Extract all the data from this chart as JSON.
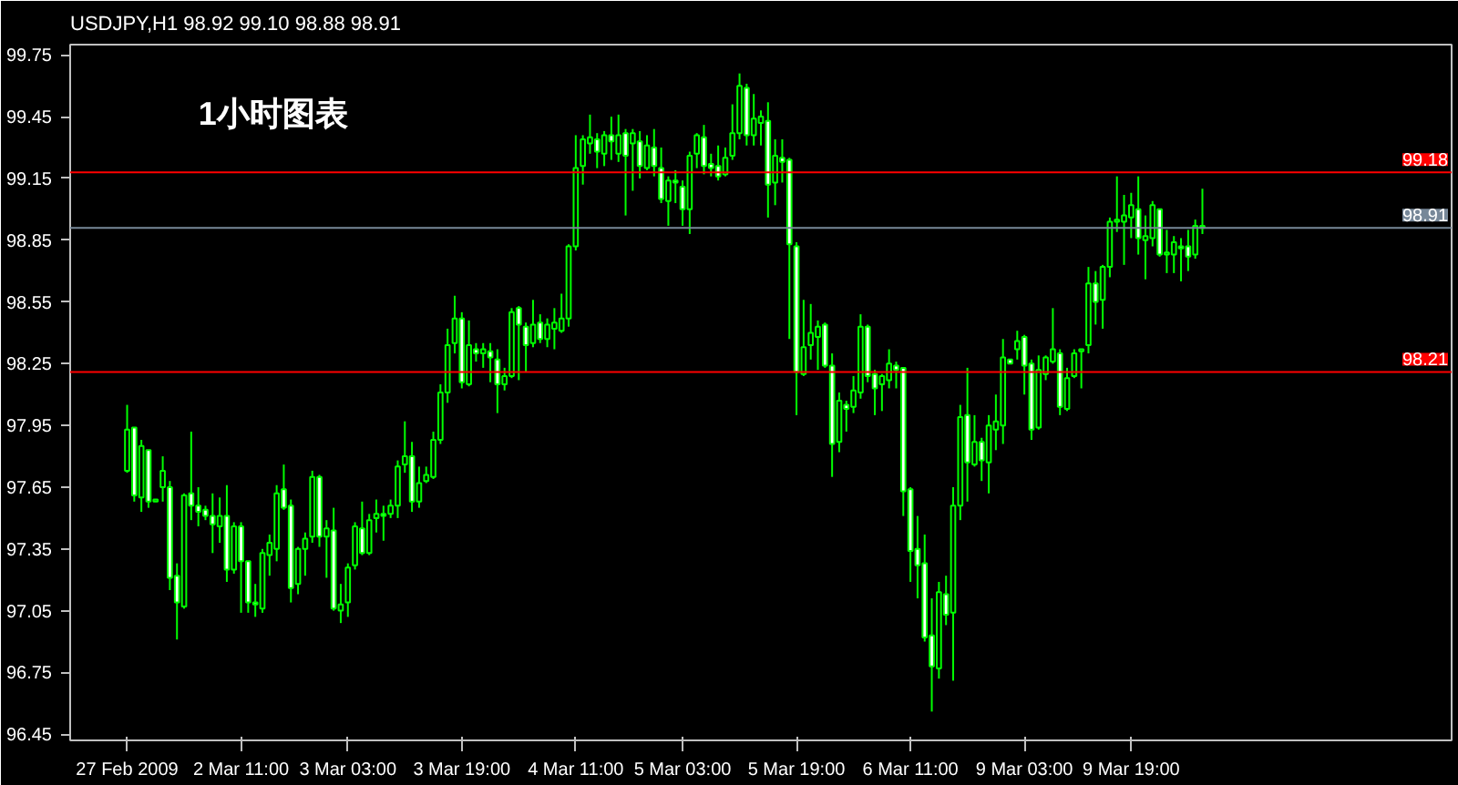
{
  "chart_data": {
    "type": "candlestick",
    "title": "USDJPY,H1  98.92 99.10 98.88 98.91",
    "annotations": [
      "1小时图表"
    ],
    "color": "#00ff00",
    "categories": [
      "27 Feb 2009",
      null,
      null,
      null,
      null,
      null,
      null,
      null,
      null,
      null,
      null,
      null,
      null,
      null,
      null,
      null,
      "2 Mar 11:00",
      null,
      null,
      null,
      null,
      null,
      null,
      null,
      null,
      null,
      null,
      null,
      null,
      null,
      null,
      "3 Mar 03:00",
      null,
      null,
      null,
      null,
      null,
      null,
      null,
      null,
      null,
      null,
      null,
      null,
      null,
      null,
      null,
      "3 Mar 19:00",
      null,
      null,
      null,
      null,
      null,
      null,
      null,
      null,
      null,
      null,
      null,
      null,
      null,
      null,
      null,
      "4 Mar 11:00",
      null,
      null,
      null,
      null,
      null,
      null,
      null,
      null,
      null,
      null,
      null,
      null,
      null,
      null,
      "5 Mar 03:00",
      null,
      null,
      null,
      null,
      null,
      null,
      null,
      null,
      null,
      null,
      null,
      null,
      null,
      null,
      null,
      "5 Mar 19:00",
      null,
      null,
      null,
      null,
      null,
      null,
      null,
      null,
      null,
      null,
      null,
      null,
      null,
      null,
      null,
      "6 Mar 11:00",
      null,
      null,
      null,
      null,
      null,
      null,
      null,
      null,
      null,
      null,
      null,
      null,
      null,
      null,
      null,
      "9 Mar 03:00",
      null,
      null,
      null,
      null,
      null,
      null,
      null,
      null,
      null,
      null,
      null,
      null,
      null,
      null,
      "9 Mar 19:00",
      null,
      null,
      null,
      null,
      null,
      null,
      null,
      null,
      null,
      null
    ],
    "ohlc": [
      [
        97.73,
        98.05,
        97.72,
        97.93
      ],
      [
        97.94,
        97.94,
        97.58,
        97.61
      ],
      [
        97.6,
        97.88,
        97.53,
        97.85
      ],
      [
        97.83,
        97.83,
        97.55,
        97.58
      ],
      [
        97.58,
        97.59,
        97.58,
        97.59
      ],
      [
        97.65,
        97.8,
        97.58,
        97.73
      ],
      [
        97.65,
        97.68,
        97.15,
        97.21
      ],
      [
        97.22,
        97.28,
        96.91,
        97.09
      ],
      [
        97.07,
        97.62,
        97.06,
        97.61
      ],
      [
        97.62,
        97.92,
        97.49,
        97.56
      ],
      [
        97.56,
        97.65,
        97.46,
        97.53
      ],
      [
        97.54,
        97.56,
        97.49,
        97.51
      ],
      [
        97.51,
        97.62,
        97.33,
        97.47
      ],
      [
        97.46,
        97.6,
        97.38,
        97.51
      ],
      [
        97.51,
        97.66,
        97.19,
        97.25
      ],
      [
        97.25,
        97.48,
        97.23,
        97.46
      ],
      [
        97.46,
        97.48,
        97.04,
        97.29
      ],
      [
        97.29,
        97.29,
        97.04,
        97.09
      ],
      [
        97.09,
        97.18,
        97.02,
        97.08
      ],
      [
        97.06,
        97.35,
        97.04,
        97.33
      ],
      [
        97.32,
        97.42,
        97.22,
        97.38
      ],
      [
        97.35,
        97.66,
        97.29,
        97.62
      ],
      [
        97.64,
        97.76,
        97.54,
        97.55
      ],
      [
        97.56,
        97.59,
        97.09,
        97.16
      ],
      [
        97.18,
        97.36,
        97.13,
        97.35
      ],
      [
        97.35,
        97.43,
        97.22,
        97.4
      ],
      [
        97.41,
        97.73,
        97.38,
        97.7
      ],
      [
        97.7,
        97.71,
        97.36,
        97.41
      ],
      [
        97.41,
        97.49,
        97.21,
        97.45
      ],
      [
        97.44,
        97.55,
        97.05,
        97.06
      ],
      [
        97.05,
        97.18,
        96.99,
        97.08
      ],
      [
        97.09,
        97.28,
        97.02,
        97.26
      ],
      [
        97.27,
        97.48,
        97.25,
        97.46
      ],
      [
        97.45,
        97.58,
        97.32,
        97.33
      ],
      [
        97.33,
        97.52,
        97.32,
        97.49
      ],
      [
        97.5,
        97.59,
        97.43,
        97.52
      ],
      [
        97.52,
        97.56,
        97.39,
        97.51
      ],
      [
        97.52,
        97.59,
        97.5,
        97.56
      ],
      [
        97.56,
        97.78,
        97.5,
        97.75
      ],
      [
        97.76,
        97.97,
        97.72,
        97.8
      ],
      [
        97.8,
        97.87,
        97.53,
        97.58
      ],
      [
        97.58,
        97.75,
        97.55,
        97.67
      ],
      [
        97.68,
        97.75,
        97.67,
        97.71
      ],
      [
        97.7,
        97.92,
        97.69,
        97.88
      ],
      [
        97.88,
        98.15,
        97.86,
        98.11
      ],
      [
        98.11,
        98.42,
        98.06,
        98.34
      ],
      [
        98.35,
        98.58,
        98.3,
        98.47
      ],
      [
        98.47,
        98.5,
        98.13,
        98.16
      ],
      [
        98.15,
        98.46,
        98.14,
        98.34
      ],
      [
        98.32,
        98.35,
        98.26,
        98.3
      ],
      [
        98.3,
        98.35,
        98.23,
        98.32
      ],
      [
        98.31,
        98.35,
        98.16,
        98.28
      ],
      [
        98.27,
        98.32,
        98.01,
        98.15
      ],
      [
        98.15,
        98.23,
        98.12,
        98.19
      ],
      [
        98.19,
        98.52,
        98.18,
        98.5
      ],
      [
        98.52,
        98.53,
        98.17,
        98.44
      ],
      [
        98.43,
        98.45,
        98.21,
        98.34
      ],
      [
        98.35,
        98.56,
        98.33,
        98.44
      ],
      [
        98.45,
        98.49,
        98.35,
        98.37
      ],
      [
        98.37,
        98.47,
        98.33,
        98.44
      ],
      [
        98.42,
        98.52,
        98.32,
        98.45
      ],
      [
        98.41,
        98.59,
        98.4,
        98.47
      ],
      [
        98.47,
        98.83,
        98.43,
        98.82
      ],
      [
        98.82,
        99.36,
        98.8,
        99.2
      ],
      [
        99.21,
        99.36,
        99.12,
        99.34
      ],
      [
        99.32,
        99.46,
        99.27,
        99.35
      ],
      [
        99.34,
        99.37,
        99.2,
        99.28
      ],
      [
        99.27,
        99.38,
        99.21,
        99.36
      ],
      [
        99.36,
        99.45,
        99.24,
        99.33
      ],
      [
        99.27,
        99.46,
        99.23,
        99.36
      ],
      [
        99.37,
        99.39,
        98.97,
        99.26
      ],
      [
        99.32,
        99.39,
        99.09,
        99.37
      ],
      [
        99.33,
        99.38,
        99.15,
        99.21
      ],
      [
        99.2,
        99.36,
        99.19,
        99.31
      ],
      [
        99.3,
        99.39,
        99.16,
        99.21
      ],
      [
        99.2,
        99.3,
        99.03,
        99.05
      ],
      [
        99.04,
        99.16,
        98.92,
        99.14
      ],
      [
        99.14,
        99.19,
        99.03,
        99.13
      ],
      [
        99.11,
        99.14,
        98.92,
        99.0
      ],
      [
        99.0,
        99.28,
        98.88,
        99.26
      ],
      [
        99.27,
        99.37,
        99.2,
        99.36
      ],
      [
        99.35,
        99.41,
        99.17,
        99.21
      ],
      [
        99.22,
        99.27,
        99.16,
        99.2
      ],
      [
        99.21,
        99.31,
        99.14,
        99.16
      ],
      [
        99.17,
        99.3,
        99.16,
        99.25
      ],
      [
        99.26,
        99.51,
        99.24,
        99.37
      ],
      [
        99.37,
        99.66,
        99.34,
        99.6
      ],
      [
        99.59,
        99.61,
        99.31,
        99.36
      ],
      [
        99.36,
        99.56,
        99.31,
        99.44
      ],
      [
        99.42,
        99.48,
        99.31,
        99.45
      ],
      [
        99.43,
        99.52,
        98.96,
        99.12
      ],
      [
        99.13,
        99.34,
        99.02,
        99.26
      ],
      [
        99.25,
        99.34,
        99.13,
        99.23
      ],
      [
        99.24,
        99.25,
        98.37,
        98.83
      ],
      [
        98.82,
        98.84,
        98.0,
        98.21
      ],
      [
        98.2,
        98.56,
        98.19,
        98.33
      ],
      [
        98.34,
        98.54,
        98.27,
        98.4
      ],
      [
        98.38,
        98.46,
        98.22,
        98.43
      ],
      [
        98.44,
        98.45,
        98.23,
        98.24
      ],
      [
        98.24,
        98.3,
        97.7,
        97.86
      ],
      [
        97.87,
        98.11,
        97.82,
        98.07
      ],
      [
        98.05,
        98.07,
        97.92,
        98.03
      ],
      [
        98.04,
        98.19,
        98.01,
        98.12
      ],
      [
        98.11,
        98.49,
        98.08,
        98.43
      ],
      [
        98.43,
        98.44,
        98.16,
        98.19
      ],
      [
        98.2,
        98.22,
        98.0,
        98.13
      ],
      [
        98.15,
        98.2,
        98.02,
        98.19
      ],
      [
        98.17,
        98.32,
        98.13,
        98.25
      ],
      [
        98.24,
        98.26,
        98.13,
        98.22
      ],
      [
        98.23,
        98.23,
        97.51,
        97.63
      ],
      [
        97.64,
        97.65,
        97.19,
        97.34
      ],
      [
        97.35,
        97.51,
        97.11,
        97.27
      ],
      [
        97.28,
        97.42,
        96.9,
        96.92
      ],
      [
        96.93,
        97.11,
        96.56,
        96.78
      ],
      [
        96.77,
        97.19,
        96.72,
        97.14
      ],
      [
        97.13,
        97.22,
        96.98,
        97.03
      ],
      [
        97.04,
        97.65,
        96.71,
        97.56
      ],
      [
        97.56,
        98.05,
        97.49,
        97.99
      ],
      [
        98.0,
        98.23,
        97.58,
        97.77
      ],
      [
        97.76,
        98.0,
        97.75,
        97.87
      ],
      [
        97.87,
        97.89,
        97.68,
        97.78
      ],
      [
        97.77,
        98.0,
        97.62,
        97.95
      ],
      [
        97.93,
        98.1,
        97.83,
        97.97
      ],
      [
        97.95,
        98.37,
        97.86,
        98.28
      ],
      [
        98.27,
        98.27,
        98.25,
        98.25
      ],
      [
        98.32,
        98.41,
        98.27,
        98.36
      ],
      [
        98.38,
        98.39,
        98.1,
        98.24
      ],
      [
        98.25,
        98.27,
        97.88,
        97.93
      ],
      [
        97.94,
        98.29,
        97.93,
        98.22
      ],
      [
        98.2,
        98.29,
        98.17,
        98.28
      ],
      [
        98.26,
        98.52,
        98.25,
        98.32
      ],
      [
        98.3,
        98.32,
        98.0,
        98.04
      ],
      [
        98.03,
        98.23,
        98.02,
        98.18
      ],
      [
        98.19,
        98.32,
        98.18,
        98.3
      ],
      [
        98.31,
        98.32,
        98.13,
        98.32
      ],
      [
        98.34,
        98.72,
        98.3,
        98.64
      ],
      [
        98.64,
        98.7,
        98.44,
        98.55
      ],
      [
        98.56,
        98.73,
        98.42,
        98.72
      ],
      [
        98.72,
        98.96,
        98.67,
        98.94
      ],
      [
        98.94,
        99.16,
        98.89,
        98.95
      ],
      [
        98.94,
        99.07,
        98.73,
        98.97
      ],
      [
        98.96,
        99.08,
        98.86,
        99.02
      ],
      [
        99.0,
        99.16,
        98.78,
        98.86
      ],
      [
        98.85,
        98.97,
        98.66,
        98.87
      ],
      [
        98.86,
        99.04,
        98.82,
        99.02
      ],
      [
        99.0,
        99.0,
        98.77,
        98.78
      ],
      [
        98.78,
        98.9,
        98.69,
        98.79
      ],
      [
        98.78,
        98.87,
        98.69,
        98.84
      ],
      [
        98.82,
        98.86,
        98.65,
        98.81
      ],
      [
        98.82,
        98.9,
        98.7,
        98.77
      ],
      [
        98.78,
        98.95,
        98.76,
        98.92
      ],
      [
        98.92,
        99.1,
        98.88,
        98.91
      ]
    ],
    "ylim": [
      96.42,
      99.8
    ],
    "yticks": [
      96.45,
      96.75,
      97.05,
      97.35,
      97.65,
      97.95,
      98.25,
      98.55,
      98.85,
      99.15,
      99.45,
      99.75
    ],
    "ref_lines": [
      {
        "axis": "y",
        "value": 99.18,
        "label": "99.18",
        "color": "#ff0000"
      },
      {
        "axis": "y",
        "value": 98.91,
        "label": "98.91",
        "color": "#778899"
      },
      {
        "axis": "y",
        "value": 98.21,
        "label": "98.21",
        "color": "#ff0000"
      }
    ]
  }
}
